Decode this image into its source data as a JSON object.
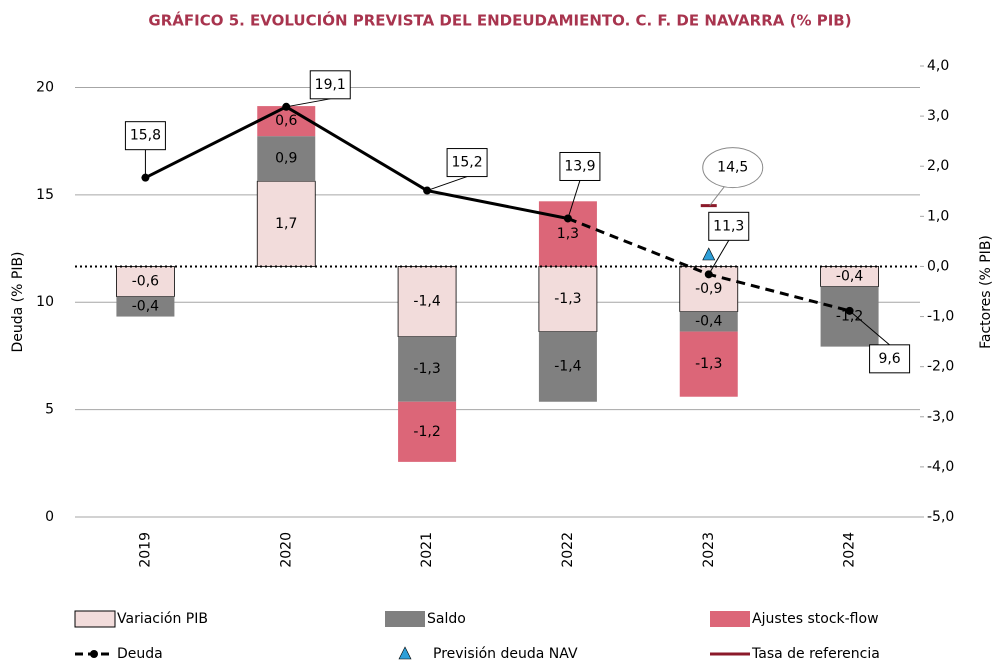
{
  "chart_data": {
    "type": "bar",
    "title": "GRÁFICO 5. EVOLUCIÓN PREVISTA DEL ENDEUDAMIENTO. C. F. DE NAVARRA (% PIB)",
    "y_label": "Deuda (% PIB)",
    "y2_label": "Factores (% PIB)",
    "categories": [
      "2019",
      "2020",
      "2021",
      "2022",
      "2023",
      "2024"
    ],
    "ylim": [
      0,
      21
    ],
    "yticks": [
      0,
      5,
      10,
      15,
      20
    ],
    "grid": true,
    "y2lim": [
      -5,
      4
    ],
    "y2ticks": [
      {
        "value": -5,
        "label": "-5,0"
      },
      {
        "value": -4,
        "label": "-4,0"
      },
      {
        "value": -3,
        "label": "-3,0"
      },
      {
        "value": -2,
        "label": "-2,0"
      },
      {
        "value": -1,
        "label": "-1,0"
      },
      {
        "value": 0,
        "label": "0,0"
      },
      {
        "value": 1,
        "label": "1,0"
      },
      {
        "value": 2,
        "label": "2,0"
      },
      {
        "value": 3,
        "label": "3,0"
      },
      {
        "value": 4,
        "label": "4,0"
      }
    ],
    "forecast_from": "2022",
    "series": [
      {
        "name": "Variación PIB",
        "type": "bar",
        "axis": "y2",
        "color": "#f2dcdb",
        "label_color": "#000000",
        "values": [
          -0.6,
          1.7,
          -1.4,
          -1.3,
          -0.9,
          -0.4
        ],
        "value_labels": [
          "-0,6",
          "1,7",
          "-1,4",
          "-1,3",
          "-0,9",
          "-0,4"
        ]
      },
      {
        "name": "Saldo",
        "type": "bar",
        "axis": "y2",
        "color": "#808080",
        "label_color": "#ffffff",
        "values": [
          -0.4,
          0.9,
          -1.3,
          -1.4,
          -0.4,
          -1.2
        ],
        "value_labels": [
          "-0,4",
          "0,9",
          "-1,3",
          "-1,4",
          "-0,4",
          "-1,2"
        ]
      },
      {
        "name": "Ajustes stock-flow",
        "type": "bar",
        "axis": "y2",
        "color": "#dc6678",
        "label_color": "#000000",
        "values": [
          null,
          0.6,
          -1.2,
          1.3,
          -1.3,
          null
        ],
        "value_labels": [
          null,
          "0,6",
          "-1,2",
          "1,3",
          "-1,3",
          null
        ]
      },
      {
        "name": "Deuda",
        "type": "line",
        "color": "#000000",
        "values": [
          15.8,
          19.1,
          15.2,
          13.9,
          11.3,
          9.6
        ],
        "value_labels": [
          "15,8",
          "19,1",
          "15,2",
          "13,9",
          "11,3",
          "9,6"
        ]
      },
      {
        "name": "Previsión deuda NAV",
        "type": "marker",
        "color": "#2e9fd8",
        "values": [
          null,
          null,
          null,
          null,
          12.2,
          null
        ]
      },
      {
        "name": "Tasa de referencia",
        "type": "tick",
        "color": "#8b1a2a",
        "values": [
          null,
          null,
          null,
          null,
          14.5,
          null
        ],
        "value_labels": [
          null,
          null,
          null,
          null,
          "14,5",
          null
        ]
      }
    ]
  }
}
